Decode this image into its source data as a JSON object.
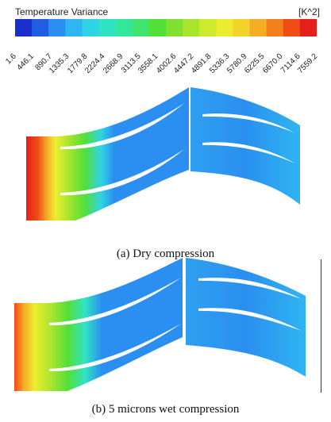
{
  "legend": {
    "title": "Temperature Variance",
    "unit": "[K^2]",
    "ticks": [
      "1.6",
      "446.1",
      "890.7",
      "1335.3",
      "1779.8",
      "2224.4",
      "2668.9",
      "3113.5",
      "3558.1",
      "4002.6",
      "4447.2",
      "4891.8",
      "5336.3",
      "5780.9",
      "6225.5",
      "6670.0",
      "7114.6",
      "7559.2"
    ],
    "colors": [
      "#1a2ecc",
      "#1d5fe0",
      "#2a8ff0",
      "#2fb5f2",
      "#30d3e6",
      "#2fe4c4",
      "#33e89a",
      "#3ee46c",
      "#53df3a",
      "#7fe030",
      "#a8e52d",
      "#cdea2c",
      "#eded2f",
      "#f4d32b",
      "#f6ad26",
      "#f47f1f",
      "#ef4c18",
      "#e5201a"
    ]
  },
  "panels": [
    {
      "caption": "(a) Dry compression"
    },
    {
      "caption": "(b) 5 microns wet compression"
    }
  ]
}
